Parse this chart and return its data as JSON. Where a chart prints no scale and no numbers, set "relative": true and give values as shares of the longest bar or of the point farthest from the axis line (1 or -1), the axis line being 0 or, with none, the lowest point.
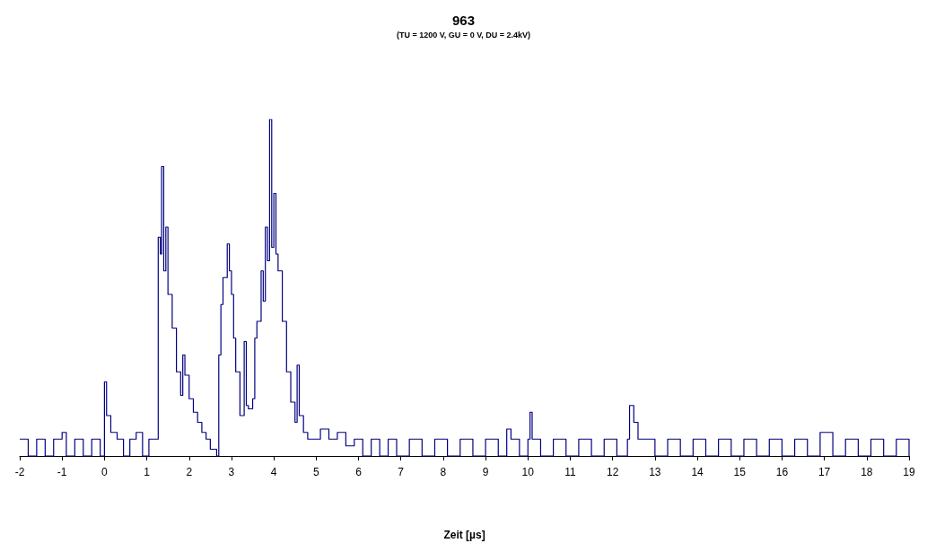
{
  "chart_data": {
    "type": "step",
    "title": "963",
    "subtitle": "(TU = 1200 V, GU = 0 V, DU = 2.4kV)",
    "xlabel": "Zeit [µs]",
    "relative": true,
    "grid": false,
    "marker": "none",
    "xlim": [
      -2,
      19
    ],
    "xticks": [
      -2,
      -1,
      0,
      1,
      2,
      3,
      4,
      5,
      6,
      7,
      8,
      9,
      10,
      11,
      12,
      13,
      14,
      15,
      16,
      17,
      18,
      19
    ],
    "series": [
      {
        "color": "#000080",
        "x": [
          -2,
          -1.8,
          -1.6,
          -1.4,
          -1.2,
          -1,
          -0.9,
          -0.7,
          -0.5,
          -0.3,
          -0.1,
          0,
          0.05,
          0.15,
          0.3,
          0.45,
          0.6,
          0.75,
          0.9,
          1.05,
          1.2,
          1.27,
          1.32,
          1.35,
          1.4,
          1.45,
          1.5,
          1.6,
          1.7,
          1.8,
          1.85,
          1.9,
          2.0,
          2.1,
          2.2,
          2.3,
          2.4,
          2.5,
          2.65,
          2.7,
          2.75,
          2.8,
          2.9,
          2.95,
          3.0,
          3.05,
          3.1,
          3.2,
          3.3,
          3.35,
          3.4,
          3.5,
          3.55,
          3.6,
          3.7,
          3.75,
          3.8,
          3.85,
          3.9,
          3.95,
          4.0,
          4.05,
          4.1,
          4.2,
          4.3,
          4.4,
          4.5,
          4.55,
          4.6,
          4.7,
          4.8,
          5.0,
          5.1,
          5.3,
          5.5,
          5.7,
          5.9,
          6.1,
          6.3,
          6.5,
          6.7,
          6.9,
          7.2,
          7.5,
          7.8,
          8.1,
          8.4,
          8.7,
          9.0,
          9.3,
          9.5,
          9.6,
          9.8,
          10.0,
          10.05,
          10.1,
          10.3,
          10.6,
          10.9,
          11.2,
          11.5,
          11.8,
          12.1,
          12.35,
          12.4,
          12.5,
          12.6,
          12.8,
          13,
          13.3,
          13.6,
          13.9,
          14.2,
          14.5,
          14.8,
          15.1,
          15.4,
          15.7,
          16,
          16.3,
          16.6,
          16.9,
          17.2,
          17.5,
          17.8,
          18.1,
          18.4,
          18.7,
          19
        ],
        "values": [
          0.05,
          0,
          0.05,
          0,
          0.05,
          0.07,
          0,
          0.05,
          0,
          0.05,
          0,
          0.22,
          0.12,
          0.07,
          0.05,
          0,
          0.05,
          0.07,
          0,
          0.05,
          0.05,
          0.65,
          0.6,
          0.86,
          0.55,
          0.68,
          0.48,
          0.38,
          0.25,
          0.18,
          0.3,
          0.24,
          0.17,
          0.13,
          0.1,
          0.07,
          0.05,
          0.02,
          0,
          0.3,
          0.45,
          0.53,
          0.63,
          0.55,
          0.48,
          0.35,
          0.25,
          0.12,
          0.34,
          0.15,
          0.14,
          0.17,
          0.35,
          0.4,
          0.55,
          0.46,
          0.68,
          0.58,
          1,
          0.62,
          0.78,
          0.6,
          0.55,
          0.4,
          0.25,
          0.16,
          0.1,
          0.27,
          0.12,
          0.07,
          0.05,
          0.05,
          0.08,
          0.05,
          0.07,
          0.03,
          0.05,
          0,
          0.05,
          0,
          0.05,
          0,
          0.05,
          0,
          0.05,
          0,
          0.05,
          0,
          0.05,
          0,
          0.08,
          0.05,
          0,
          0.05,
          0.13,
          0.05,
          0,
          0.05,
          0,
          0.05,
          0,
          0.05,
          0,
          0.05,
          0.15,
          0.1,
          0.05,
          0.05,
          0,
          0.05,
          0,
          0.05,
          0,
          0.05,
          0,
          0.05,
          0,
          0.05,
          0,
          0.05,
          0,
          0.07,
          0,
          0.05,
          0,
          0.05,
          0,
          0.05,
          0
        ]
      }
    ]
  }
}
